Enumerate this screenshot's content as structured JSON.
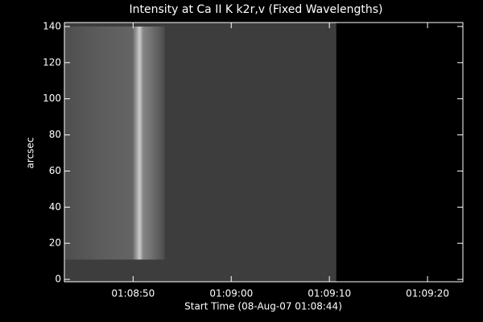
{
  "chart_data": {
    "type": "image",
    "title": "Intensity at Ca II K k2r,v (Fixed Wavelengths)",
    "xlabel": "Start Time (08-Aug-07 01:08:44)",
    "ylabel": "arcsec",
    "xlim": [
      -1.0,
      39.6
    ],
    "ylim": [
      -1.3,
      142.2
    ],
    "xticks": [
      {
        "value": 6,
        "label": "01:08:50"
      },
      {
        "value": 16,
        "label": "01:09:00"
      },
      {
        "value": 26,
        "label": "01:09:10"
      },
      {
        "value": 36,
        "label": "01:09:20"
      }
    ],
    "yticks": [
      0,
      20,
      40,
      60,
      80,
      100,
      120,
      140
    ],
    "images": [
      {
        "x": [
          -1.0,
          26.7
        ],
        "y": [
          -1.3,
          142.2
        ],
        "color": "#3d3d3d"
      },
      {
        "x": [
          -1.0,
          9.2
        ],
        "y": [
          11,
          140
        ],
        "color": "#5a5a5a"
      }
    ]
  }
}
